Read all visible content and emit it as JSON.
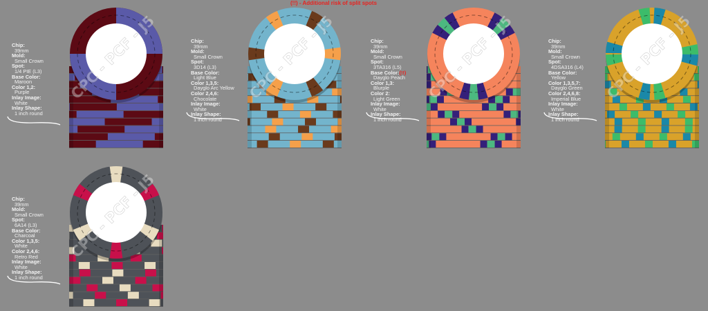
{
  "note": "(!!) - Additional risk of split spots",
  "watermark": "CPC - PCF - J5",
  "chips": [
    {
      "pattern": "quarters",
      "base": "#5c0a14",
      "spot1": "#5a5aa8",
      "spot2": "#5a5aa8",
      "specs": [
        {
          "label": "Chip:",
          "value": "39mm"
        },
        {
          "label": "Mold:",
          "value": "Small Crown"
        },
        {
          "label": "Spot:",
          "value": "1/4 PIE (L3)"
        },
        {
          "label": "Base Color:",
          "value": "Maroon"
        },
        {
          "label": "Color 1,2:",
          "value": "Purple"
        },
        {
          "label": "Inlay Image:",
          "value": "White"
        },
        {
          "label": "Inlay Shape:",
          "value": "1 inch round"
        }
      ]
    },
    {
      "pattern": "six",
      "base": "#73b4cc",
      "spot1": "#f5a04a",
      "spot2": "#6a3a1c",
      "specs": [
        {
          "label": "Chip:",
          "value": "39mm"
        },
        {
          "label": "Mold:",
          "value": "Small Crown"
        },
        {
          "label": "Spot:",
          "value": "3D14 (L3)"
        },
        {
          "label": "Base Color:",
          "value": "Light Blue"
        },
        {
          "label": "Color 1,3,5:",
          "value": "Dayglo Arc Yellow"
        },
        {
          "label": "Color 2,4,6:",
          "value": "Chocolate"
        },
        {
          "label": "Inlay Image:",
          "value": "White"
        },
        {
          "label": "Inlay Shape:",
          "value": "1 inch round"
        }
      ]
    },
    {
      "pattern": "triple",
      "base": "#f5845c",
      "spot1": "#34207a",
      "spot2": "#4cb880",
      "specs": [
        {
          "label": "Chip:",
          "value": "39mm"
        },
        {
          "label": "Mold:",
          "value": "Small Crown"
        },
        {
          "label": "Spot:",
          "value": "3TA316 (L5)"
        },
        {
          "label": "Base Color:",
          "value": "Dayglo Peach",
          "warning": "(!!)"
        },
        {
          "label": "Color 1,3:",
          "value": "Blurple"
        },
        {
          "label": "Color 2:",
          "value": "Light Green"
        },
        {
          "label": "Inlay Image:",
          "value": "White"
        },
        {
          "label": "Inlay Shape:",
          "value": "1 inch round"
        }
      ]
    },
    {
      "pattern": "eight",
      "base": "#d9a22a",
      "spot1": "#3cbc6a",
      "spot2": "#1a88a8",
      "specs": [
        {
          "label": "Chip:",
          "value": "39mm"
        },
        {
          "label": "Mold:",
          "value": "Small Crown"
        },
        {
          "label": "Spot:",
          "value": "4DSA316 (L4)"
        },
        {
          "label": "Base Color:",
          "value": "Yellow"
        },
        {
          "label": "Color 1,3,5,7:",
          "value": "Dayglo Green"
        },
        {
          "label": "Color 2,4,6,8:",
          "value": "Imperial Blue"
        },
        {
          "label": "Inlay Image:",
          "value": "White"
        },
        {
          "label": "Inlay Shape:",
          "value": "1 inch round"
        }
      ]
    },
    {
      "pattern": "six",
      "base": "#4e5258",
      "spot1": "#e8dcc0",
      "spot2": "#c8104a",
      "specs": [
        {
          "label": "Chip:",
          "value": "39mm"
        },
        {
          "label": "Mold:",
          "value": "Small Crown"
        },
        {
          "label": "Spot:",
          "value": "6A14 (L3)"
        },
        {
          "label": "Base Color:",
          "value": "Charcoal"
        },
        {
          "label": "Color 1,3,5:",
          "value": "White"
        },
        {
          "label": "Color 2,4,6:",
          "value": "Retro Red"
        },
        {
          "label": "Inlay Image:",
          "value": "White"
        },
        {
          "label": "Inlay Shape:",
          "value": "1 inch round"
        }
      ]
    }
  ]
}
